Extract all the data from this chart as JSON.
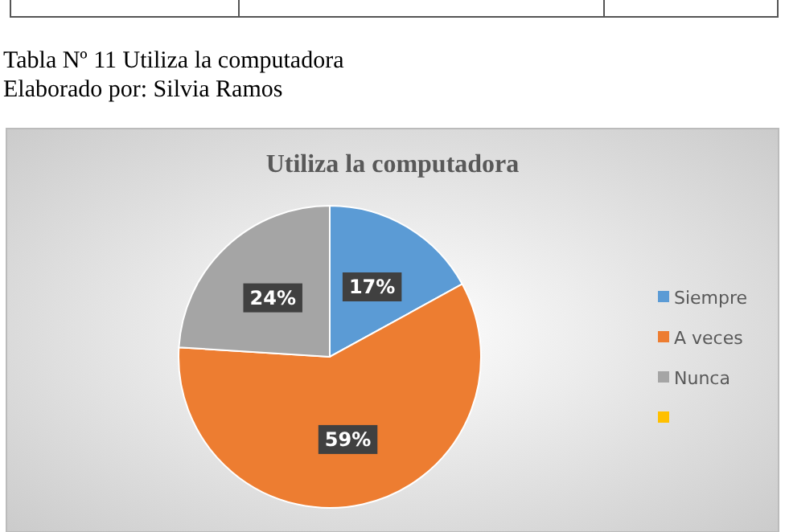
{
  "chart_data": {
    "type": "pie",
    "title": "Utiliza la computadora",
    "annotations": [
      "Tabla Nº 11 Utiliza la computadora",
      "Elaborado por: Silvia Ramos"
    ],
    "categories": [
      "Siempre",
      "A veces",
      "Nunca",
      null
    ],
    "values": [
      17,
      59,
      24,
      0
    ],
    "colors": [
      "#5b9bd5",
      "#ed7d31",
      "#a5a5a5",
      "#ffc000"
    ],
    "value_labels": [
      "17%",
      "59%",
      "24%",
      null
    ],
    "legend": "right"
  }
}
